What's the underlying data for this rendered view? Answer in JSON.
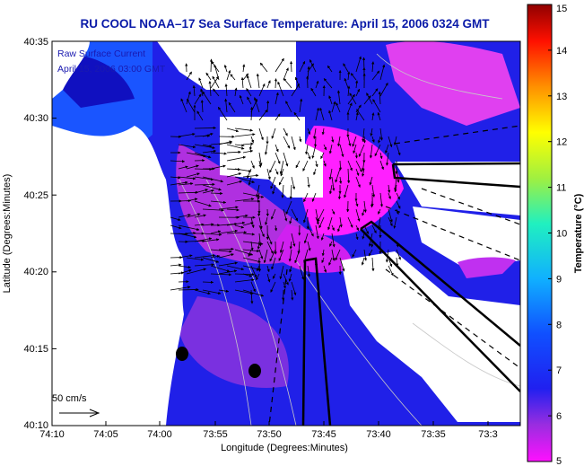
{
  "title": "RU COOL  NOAA–17  Sea Surface Temperature:  April 15, 2006 0324 GMT",
  "overlay": {
    "line1": "Raw Surface Current",
    "line2": "April 15, 2006 03:00 GMT"
  },
  "scale_label": "50 cm/s",
  "axes": {
    "xlabel": "Longitude (Degrees:Minutes)",
    "ylabel": "Latitude (Degrees:Minutes)",
    "xticks": [
      "74:10",
      "74:05",
      "74:00",
      "73:55",
      "73:50",
      "73:45",
      "73:40",
      "73:35",
      "73:3"
    ],
    "yticks": [
      "40:35",
      "40:30",
      "40:25",
      "40:20",
      "40:15",
      "40:10"
    ]
  },
  "colorbar": {
    "label": "Temperature (°C)",
    "min": 5,
    "max": 15,
    "ticks": [
      "15",
      "14",
      "13",
      "12",
      "11",
      "10",
      "9",
      "8",
      "7",
      "6",
      "5"
    ]
  }
}
